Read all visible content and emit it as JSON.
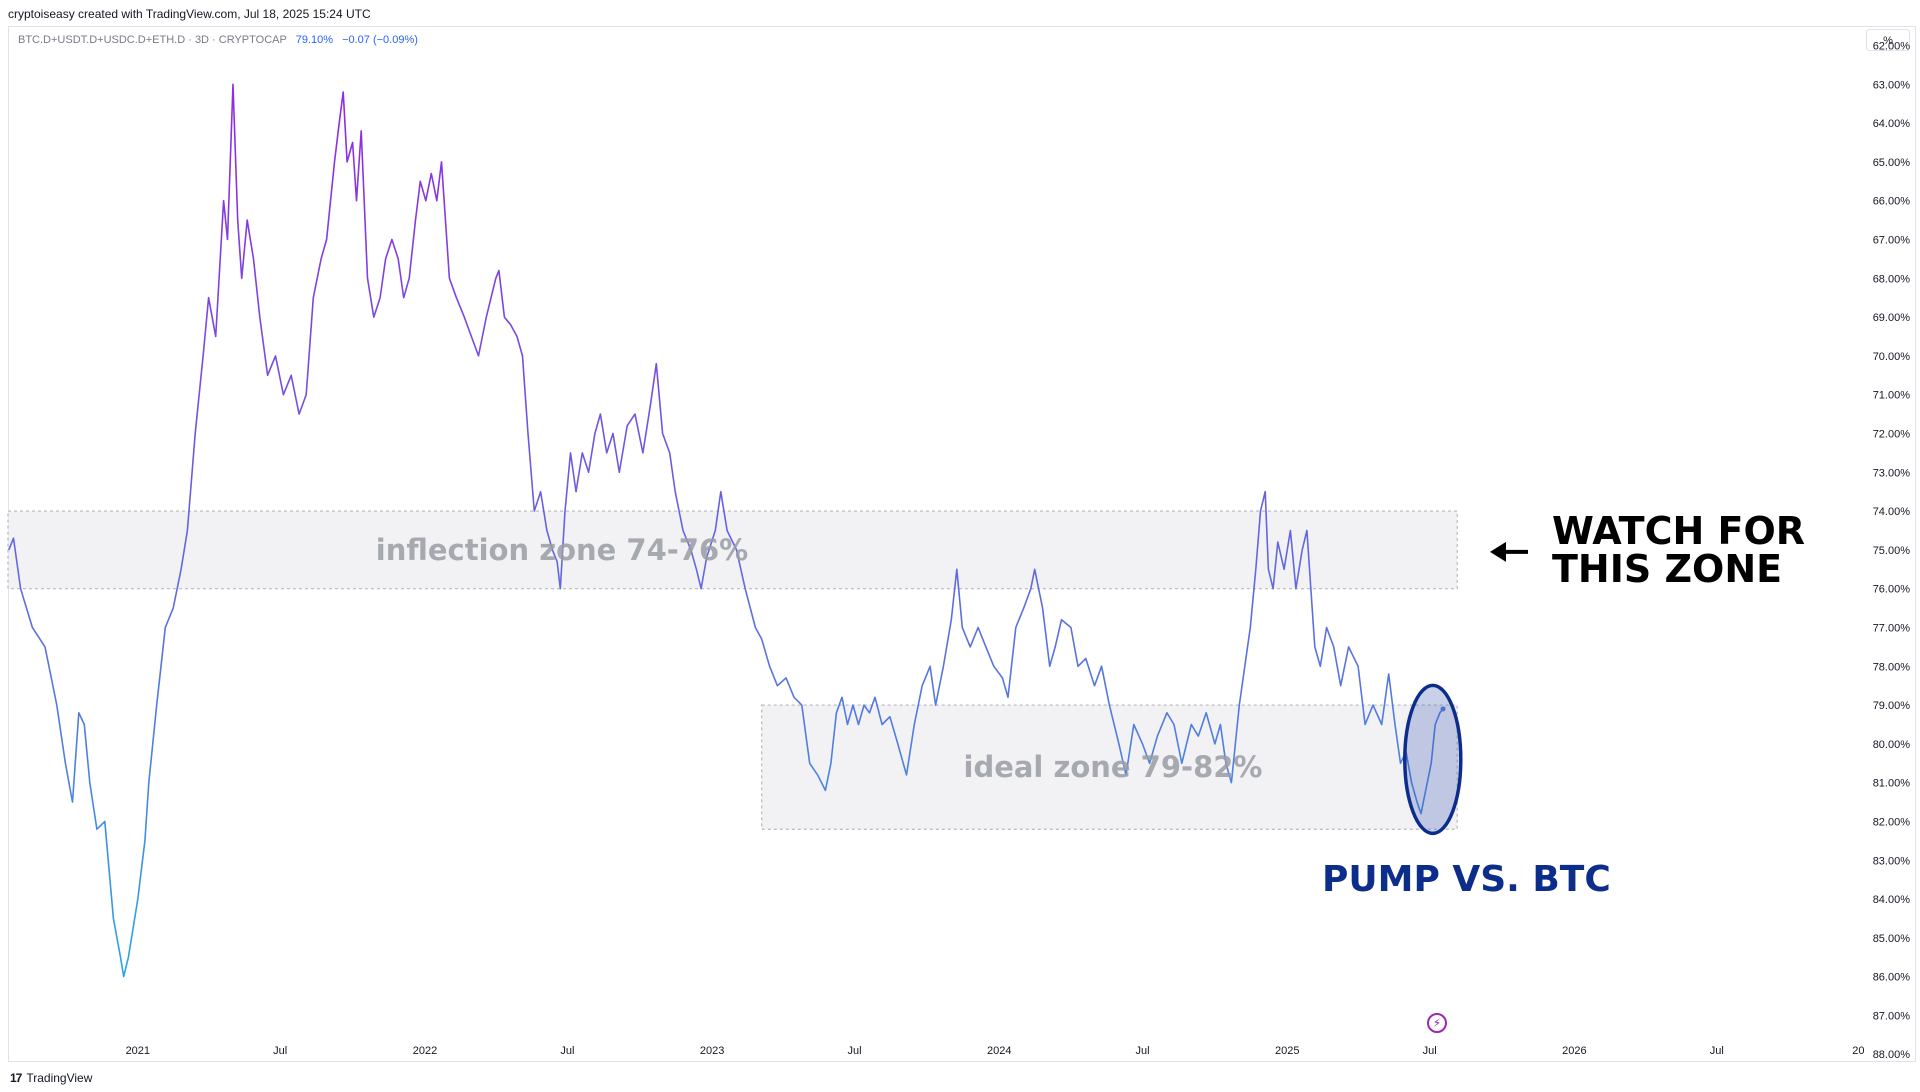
{
  "header": {
    "credit": "cryptoiseasy created with TradingView.com, Jul 18, 2025 15:24 UTC",
    "symbol": "BTC.D+USDT.D+USDC.D+ETH.D · 3D · CRYPTOCAP",
    "last_value": "79.10%",
    "change": "−0.07 (−0.09%)",
    "scale_button": "%"
  },
  "footer": {
    "brand": "TradingView",
    "logo_text": "17"
  },
  "colors": {
    "line_top": "#8e2de2",
    "line_mid": "#5b6ee1",
    "line_bottom": "#2aa4e6",
    "annotation": "#0d2d8a"
  },
  "chart_data": {
    "type": "line",
    "y_inverted": true,
    "ylim": [
      61.6,
      88.2
    ],
    "xlim": [
      "2020-07-20",
      "2026-12-30"
    ],
    "y_ticks": [
      "62.00%",
      "63.00%",
      "64.00%",
      "65.00%",
      "66.00%",
      "67.00%",
      "68.00%",
      "69.00%",
      "70.00%",
      "71.00%",
      "72.00%",
      "73.00%",
      "74.00%",
      "75.00%",
      "76.00%",
      "77.00%",
      "78.00%",
      "79.00%",
      "80.00%",
      "81.00%",
      "82.00%",
      "83.00%",
      "84.00%",
      "85.00%",
      "86.00%",
      "87.00%",
      "88.00%"
    ],
    "x_ticks": [
      {
        "label": "2021",
        "date": "2021-01-01"
      },
      {
        "label": "Jul",
        "date": "2021-07-01"
      },
      {
        "label": "2022",
        "date": "2022-01-01"
      },
      {
        "label": "Jul",
        "date": "2022-07-01"
      },
      {
        "label": "2023",
        "date": "2023-01-01"
      },
      {
        "label": "Jul",
        "date": "2023-07-01"
      },
      {
        "label": "2024",
        "date": "2024-01-01"
      },
      {
        "label": "Jul",
        "date": "2024-07-01"
      },
      {
        "label": "2025",
        "date": "2025-01-01"
      },
      {
        "label": "Jul",
        "date": "2025-07-01"
      },
      {
        "label": "2026",
        "date": "2026-01-01"
      },
      {
        "label": "Jul",
        "date": "2026-07-01"
      },
      {
        "label": "20",
        "date": "2026-12-28"
      }
    ],
    "series": [
      {
        "points": [
          [
            "2020-07-21",
            75.0
          ],
          [
            "2020-07-27",
            74.7
          ],
          [
            "2020-08-05",
            76.0
          ],
          [
            "2020-08-20",
            77.0
          ],
          [
            "2020-09-05",
            77.5
          ],
          [
            "2020-09-20",
            79.0
          ],
          [
            "2020-10-01",
            80.5
          ],
          [
            "2020-10-10",
            81.5
          ],
          [
            "2020-10-18",
            79.2
          ],
          [
            "2020-10-25",
            79.5
          ],
          [
            "2020-11-01",
            81.0
          ],
          [
            "2020-11-10",
            82.2
          ],
          [
            "2020-11-20",
            82.0
          ],
          [
            "2020-12-01",
            84.5
          ],
          [
            "2020-12-10",
            85.5
          ],
          [
            "2020-12-14",
            86.0
          ],
          [
            "2020-12-20",
            85.5
          ],
          [
            "2021-01-01",
            84.0
          ],
          [
            "2021-01-10",
            82.5
          ],
          [
            "2021-01-15",
            81.0
          ],
          [
            "2021-01-25",
            79.0
          ],
          [
            "2021-02-05",
            77.0
          ],
          [
            "2021-02-15",
            76.5
          ],
          [
            "2021-02-25",
            75.5
          ],
          [
            "2021-03-05",
            74.5
          ],
          [
            "2021-03-15",
            72.0
          ],
          [
            "2021-03-25",
            70.0
          ],
          [
            "2021-04-01",
            68.5
          ],
          [
            "2021-04-10",
            69.5
          ],
          [
            "2021-04-20",
            66.0
          ],
          [
            "2021-04-25",
            67.0
          ],
          [
            "2021-05-02",
            63.0
          ],
          [
            "2021-05-08",
            66.5
          ],
          [
            "2021-05-13",
            68.0
          ],
          [
            "2021-05-20",
            66.5
          ],
          [
            "2021-05-28",
            67.5
          ],
          [
            "2021-06-05",
            69.0
          ],
          [
            "2021-06-15",
            70.5
          ],
          [
            "2021-06-25",
            70.0
          ],
          [
            "2021-07-05",
            71.0
          ],
          [
            "2021-07-15",
            70.5
          ],
          [
            "2021-07-25",
            71.5
          ],
          [
            "2021-08-03",
            71.0
          ],
          [
            "2021-08-12",
            68.5
          ],
          [
            "2021-08-22",
            67.5
          ],
          [
            "2021-08-29",
            67.0
          ],
          [
            "2021-09-08",
            65.0
          ],
          [
            "2021-09-14",
            64.0
          ],
          [
            "2021-09-19",
            63.2
          ],
          [
            "2021-09-24",
            65.0
          ],
          [
            "2021-10-01",
            64.5
          ],
          [
            "2021-10-06",
            66.0
          ],
          [
            "2021-10-12",
            64.2
          ],
          [
            "2021-10-20",
            68.0
          ],
          [
            "2021-10-28",
            69.0
          ],
          [
            "2021-11-05",
            68.5
          ],
          [
            "2021-11-12",
            67.5
          ],
          [
            "2021-11-20",
            67.0
          ],
          [
            "2021-11-28",
            67.5
          ],
          [
            "2021-12-05",
            68.5
          ],
          [
            "2021-12-12",
            68.0
          ],
          [
            "2021-12-20",
            66.5
          ],
          [
            "2021-12-26",
            65.5
          ],
          [
            "2022-01-02",
            66.0
          ],
          [
            "2022-01-09",
            65.3
          ],
          [
            "2022-01-16",
            66.0
          ],
          [
            "2022-01-22",
            65.0
          ],
          [
            "2022-02-01",
            68.0
          ],
          [
            "2022-02-10",
            68.5
          ],
          [
            "2022-02-20",
            69.0
          ],
          [
            "2022-03-01",
            69.5
          ],
          [
            "2022-03-10",
            70.0
          ],
          [
            "2022-03-20",
            69.0
          ],
          [
            "2022-04-01",
            68.0
          ],
          [
            "2022-04-05",
            67.8
          ],
          [
            "2022-04-12",
            69.0
          ],
          [
            "2022-04-20",
            69.2
          ],
          [
            "2022-04-28",
            69.5
          ],
          [
            "2022-05-05",
            70.0
          ],
          [
            "2022-05-12",
            72.0
          ],
          [
            "2022-05-20",
            74.0
          ],
          [
            "2022-05-28",
            73.5
          ],
          [
            "2022-06-05",
            74.5
          ],
          [
            "2022-06-12",
            75.0
          ],
          [
            "2022-06-18",
            75.3
          ],
          [
            "2022-06-22",
            76.0
          ],
          [
            "2022-06-28",
            74.0
          ],
          [
            "2022-07-05",
            72.5
          ],
          [
            "2022-07-12",
            73.5
          ],
          [
            "2022-07-20",
            72.5
          ],
          [
            "2022-07-28",
            73.0
          ],
          [
            "2022-08-05",
            72.0
          ],
          [
            "2022-08-12",
            71.5
          ],
          [
            "2022-08-20",
            72.5
          ],
          [
            "2022-08-28",
            72.0
          ],
          [
            "2022-09-05",
            73.0
          ],
          [
            "2022-09-15",
            71.8
          ],
          [
            "2022-09-25",
            71.5
          ],
          [
            "2022-10-05",
            72.5
          ],
          [
            "2022-10-15",
            71.2
          ],
          [
            "2022-10-22",
            70.2
          ],
          [
            "2022-10-30",
            72.0
          ],
          [
            "2022-11-08",
            72.5
          ],
          [
            "2022-11-15",
            73.5
          ],
          [
            "2022-11-25",
            74.5
          ],
          [
            "2022-12-05",
            75.0
          ],
          [
            "2022-12-12",
            75.5
          ],
          [
            "2022-12-18",
            76.0
          ],
          [
            "2022-12-25",
            75.2
          ],
          [
            "2023-01-05",
            74.5
          ],
          [
            "2023-01-12",
            73.5
          ],
          [
            "2023-01-20",
            74.5
          ],
          [
            "2023-02-01",
            75.0
          ],
          [
            "2023-02-12",
            76.0
          ],
          [
            "2023-02-25",
            77.0
          ],
          [
            "2023-03-05",
            77.3
          ],
          [
            "2023-03-15",
            78.0
          ],
          [
            "2023-03-25",
            78.5
          ],
          [
            "2023-04-05",
            78.3
          ],
          [
            "2023-04-15",
            78.8
          ],
          [
            "2023-04-25",
            79.0
          ],
          [
            "2023-05-05",
            80.5
          ],
          [
            "2023-05-15",
            80.8
          ],
          [
            "2023-05-25",
            81.2
          ],
          [
            "2023-06-01",
            80.5
          ],
          [
            "2023-06-08",
            79.2
          ],
          [
            "2023-06-15",
            78.8
          ],
          [
            "2023-06-22",
            79.5
          ],
          [
            "2023-06-29",
            79.0
          ],
          [
            "2023-07-06",
            79.5
          ],
          [
            "2023-07-13",
            79.0
          ],
          [
            "2023-07-20",
            79.2
          ],
          [
            "2023-07-27",
            78.8
          ],
          [
            "2023-08-05",
            79.5
          ],
          [
            "2023-08-15",
            79.3
          ],
          [
            "2023-08-25",
            80.0
          ],
          [
            "2023-09-05",
            80.8
          ],
          [
            "2023-09-15",
            79.5
          ],
          [
            "2023-09-25",
            78.5
          ],
          [
            "2023-10-05",
            78.0
          ],
          [
            "2023-10-12",
            79.0
          ],
          [
            "2023-10-22",
            78.0
          ],
          [
            "2023-11-01",
            76.8
          ],
          [
            "2023-11-08",
            75.5
          ],
          [
            "2023-11-15",
            77.0
          ],
          [
            "2023-11-25",
            77.5
          ],
          [
            "2023-12-05",
            77.0
          ],
          [
            "2023-12-15",
            77.5
          ],
          [
            "2023-12-25",
            78.0
          ],
          [
            "2024-01-05",
            78.3
          ],
          [
            "2024-01-12",
            78.8
          ],
          [
            "2024-01-22",
            77.0
          ],
          [
            "2024-02-01",
            76.5
          ],
          [
            "2024-02-10",
            76.0
          ],
          [
            "2024-02-15",
            75.5
          ],
          [
            "2024-02-25",
            76.5
          ],
          [
            "2024-03-05",
            78.0
          ],
          [
            "2024-03-12",
            77.5
          ],
          [
            "2024-03-20",
            76.8
          ],
          [
            "2024-04-01",
            77.0
          ],
          [
            "2024-04-10",
            78.0
          ],
          [
            "2024-04-20",
            77.8
          ],
          [
            "2024-05-01",
            78.5
          ],
          [
            "2024-05-10",
            78.0
          ],
          [
            "2024-05-20",
            79.0
          ],
          [
            "2024-06-01",
            80.0
          ],
          [
            "2024-06-10",
            80.8
          ],
          [
            "2024-06-20",
            79.5
          ],
          [
            "2024-07-01",
            80.0
          ],
          [
            "2024-07-10",
            80.5
          ],
          [
            "2024-07-20",
            79.8
          ],
          [
            "2024-08-01",
            79.2
          ],
          [
            "2024-08-10",
            79.5
          ],
          [
            "2024-08-20",
            80.5
          ],
          [
            "2024-09-01",
            79.5
          ],
          [
            "2024-09-10",
            79.8
          ],
          [
            "2024-09-20",
            79.2
          ],
          [
            "2024-10-01",
            80.0
          ],
          [
            "2024-10-08",
            79.5
          ],
          [
            "2024-10-15",
            80.5
          ],
          [
            "2024-10-22",
            81.0
          ],
          [
            "2024-11-01",
            79.0
          ],
          [
            "2024-11-08",
            78.0
          ],
          [
            "2024-11-15",
            77.0
          ],
          [
            "2024-11-22",
            75.5
          ],
          [
            "2024-11-28",
            74.0
          ],
          [
            "2024-12-04",
            73.5
          ],
          [
            "2024-12-08",
            75.5
          ],
          [
            "2024-12-14",
            76.0
          ],
          [
            "2024-12-20",
            74.8
          ],
          [
            "2024-12-28",
            75.5
          ],
          [
            "2025-01-05",
            74.5
          ],
          [
            "2025-01-12",
            76.0
          ],
          [
            "2025-01-20",
            75.0
          ],
          [
            "2025-01-26",
            74.5
          ],
          [
            "2025-02-05",
            77.5
          ],
          [
            "2025-02-12",
            78.0
          ],
          [
            "2025-02-20",
            77.0
          ],
          [
            "2025-03-01",
            77.5
          ],
          [
            "2025-03-10",
            78.5
          ],
          [
            "2025-03-20",
            77.5
          ],
          [
            "2025-04-01",
            78.0
          ],
          [
            "2025-04-10",
            79.5
          ],
          [
            "2025-04-20",
            79.0
          ],
          [
            "2025-05-01",
            79.5
          ],
          [
            "2025-05-10",
            78.2
          ],
          [
            "2025-05-18",
            79.5
          ],
          [
            "2025-05-25",
            80.5
          ],
          [
            "2025-06-01",
            80.2
          ],
          [
            "2025-06-08",
            81.0
          ],
          [
            "2025-06-15",
            81.5
          ],
          [
            "2025-06-20",
            81.8
          ],
          [
            "2025-06-26",
            81.2
          ],
          [
            "2025-07-03",
            80.5
          ],
          [
            "2025-07-08",
            79.5
          ],
          [
            "2025-07-14",
            79.2
          ],
          [
            "2025-07-18",
            79.1
          ]
        ]
      }
    ],
    "zones": [
      {
        "label": "inflection zone 74-76%",
        "from": 74.0,
        "to": 76.0,
        "x_start": "2020-07-20",
        "x_end": "2025-08-05"
      },
      {
        "label": "ideal zone 79-82%",
        "from": 79.0,
        "to": 82.2,
        "x_start": "2023-03-05",
        "x_end": "2025-08-05"
      }
    ],
    "annotations": {
      "watch_line1": "WATCH FOR",
      "watch_line2": "THIS ZONE",
      "pump_label": "PUMP VS. BTC",
      "ellipse_center": {
        "date": "2025-07-05",
        "value": 80.4
      }
    }
  }
}
